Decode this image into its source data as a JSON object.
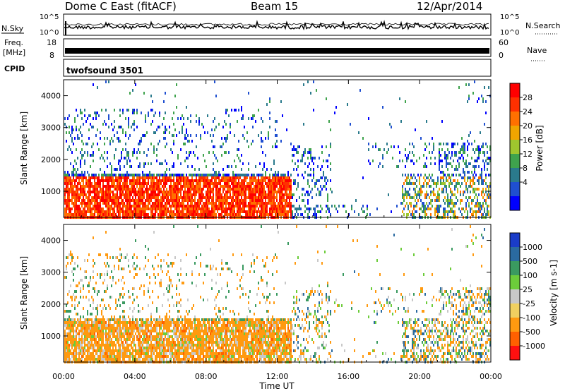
{
  "header": {
    "title": "Dome C East (fitACF)",
    "beam": "Beam 15",
    "date": "12/Apr/2014"
  },
  "nsky_panel": {
    "left_label": "N.Sky",
    "right_label": "N.Search",
    "tick_top": "10^5",
    "tick_bottom": "10^0"
  },
  "freq_panel": {
    "left_label_1": "Freq.",
    "left_label_2": "[MHz]",
    "left_tick_top": "18",
    "left_tick_bottom": "8",
    "right_label": "Nave",
    "right_tick_top": "60",
    "right_tick_bottom": "0"
  },
  "cpid": {
    "label": "CPID",
    "value": "twofsound 3501"
  },
  "axes": {
    "ylabel": "Slant Range [km]",
    "xlabel": "Time UT",
    "y_ticks": [
      "1000",
      "2000",
      "3000",
      "4000"
    ],
    "x_ticks": [
      "00:00",
      "04:00",
      "08:00",
      "12:00",
      "16:00",
      "20:00",
      "00:00"
    ]
  },
  "power_scale": {
    "label": "Power [dB]",
    "ticks": [
      "4",
      "8",
      "12",
      "16",
      "20",
      "24",
      "28"
    ],
    "colors": [
      "#0000ff",
      "#1f4fd0",
      "#2a7a8c",
      "#3fa34d",
      "#9fc62e",
      "#f0a500",
      "#ff7000",
      "#ff3000",
      "#ff0000"
    ]
  },
  "velocity_scale": {
    "label": "Velocity [m s-1]",
    "ticks": [
      "1000",
      "500",
      "100",
      "25",
      "-25",
      "-100",
      "-500",
      "-1000"
    ],
    "colors": [
      "#1a3cc8",
      "#2a6aa0",
      "#3a9a60",
      "#6ccc3a",
      "#c8c8c8",
      "#f0d060",
      "#ff9a10",
      "#ff6000",
      "#ff1010"
    ]
  },
  "chart_data": {
    "type": "heatmap",
    "x_range_hours": [
      0,
      24
    ],
    "y_range_km": [
      180,
      4500
    ],
    "panels": [
      "power",
      "velocity"
    ],
    "power_range_db": [
      0,
      30
    ],
    "velocity_range_ms": [
      -1000,
      1000
    ]
  }
}
